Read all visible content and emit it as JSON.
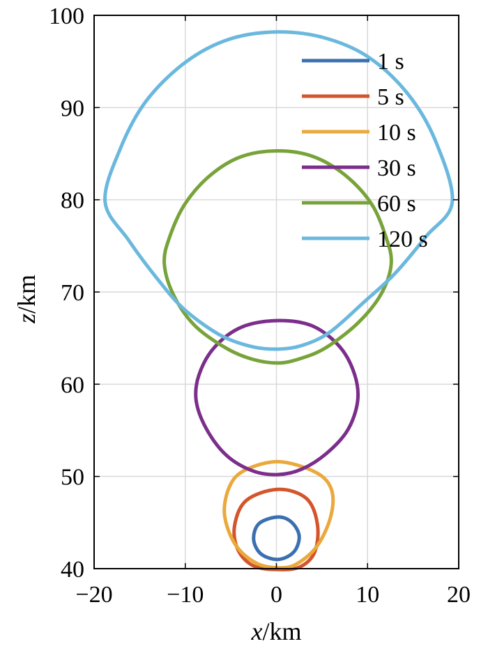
{
  "chart_data": {
    "type": "line",
    "xlabel_var": "x",
    "xlabel_unit": "/km",
    "ylabel_var": "z",
    "ylabel_unit": "/km",
    "xlim": [
      -20,
      20
    ],
    "ylim": [
      40,
      100
    ],
    "x_ticks": [
      -20,
      -10,
      0,
      10,
      20
    ],
    "y_ticks": [
      40,
      50,
      60,
      70,
      80,
      90,
      100
    ],
    "grid": true,
    "legend_position": "top-right",
    "series": [
      {
        "name": "1 s",
        "color": "#3a6fb0",
        "points": [
          [
            0.2,
            45.6
          ],
          [
            1.7,
            45.0
          ],
          [
            2.5,
            43.5
          ],
          [
            1.9,
            41.8
          ],
          [
            0.2,
            41.0
          ],
          [
            -1.7,
            41.6
          ],
          [
            -2.5,
            43.2
          ],
          [
            -1.9,
            44.9
          ]
        ]
      },
      {
        "name": "5 s",
        "color": "#d4552b",
        "points": [
          [
            0.2,
            48.6
          ],
          [
            3.3,
            47.6
          ],
          [
            4.5,
            44.8
          ],
          [
            4.2,
            41.8
          ],
          [
            2.6,
            40.2
          ],
          [
            0.2,
            39.9
          ],
          [
            -2.5,
            40.3
          ],
          [
            -4.2,
            42.0
          ],
          [
            -4.6,
            44.6
          ],
          [
            -3.3,
            47.4
          ]
        ]
      },
      {
        "name": "10 s",
        "color": "#eaa93c",
        "points": [
          [
            0.2,
            51.6
          ],
          [
            4.2,
            50.5
          ],
          [
            6.0,
            48.7
          ],
          [
            6.0,
            45.8
          ],
          [
            4.5,
            42.5
          ],
          [
            2.2,
            40.5
          ],
          [
            0.2,
            40.1
          ],
          [
            -2.2,
            40.6
          ],
          [
            -4.5,
            42.6
          ],
          [
            -5.7,
            45.9
          ],
          [
            -5.1,
            49.0
          ],
          [
            -3.4,
            50.7
          ]
        ]
      },
      {
        "name": "30 s",
        "color": "#7b2e8a",
        "points": [
          [
            0.2,
            66.9
          ],
          [
            4.0,
            66.3
          ],
          [
            7.0,
            64.0
          ],
          [
            8.6,
            61.0
          ],
          [
            8.9,
            58.1
          ],
          [
            7.8,
            55.0
          ],
          [
            5.5,
            52.5
          ],
          [
            2.8,
            50.8
          ],
          [
            0.2,
            50.2
          ],
          [
            -2.6,
            50.6
          ],
          [
            -5.5,
            52.3
          ],
          [
            -7.7,
            55.2
          ],
          [
            -8.8,
            58.2
          ],
          [
            -8.5,
            61.0
          ],
          [
            -6.8,
            64.0
          ],
          [
            -3.8,
            66.2
          ]
        ]
      },
      {
        "name": "60 s",
        "color": "#78a33a",
        "points": [
          [
            0.2,
            85.3
          ],
          [
            4.0,
            84.7
          ],
          [
            7.5,
            82.7
          ],
          [
            10.4,
            79.6
          ],
          [
            12.0,
            76.0
          ],
          [
            12.6,
            73.1
          ],
          [
            11.5,
            69.8
          ],
          [
            9.0,
            66.7
          ],
          [
            5.5,
            64.0
          ],
          [
            2.7,
            62.8
          ],
          [
            0.2,
            62.3
          ],
          [
            -2.6,
            62.7
          ],
          [
            -5.5,
            63.9
          ],
          [
            -9.0,
            66.4
          ],
          [
            -11.3,
            69.7
          ],
          [
            -12.3,
            73.1
          ],
          [
            -11.7,
            76.0
          ],
          [
            -10.0,
            79.6
          ],
          [
            -7.2,
            82.7
          ],
          [
            -3.8,
            84.7
          ]
        ]
      },
      {
        "name": "120 s",
        "color": "#6bb8de",
        "points": [
          [
            0.2,
            98.2
          ],
          [
            5.5,
            97.5
          ],
          [
            10.2,
            95.4
          ],
          [
            14.4,
            91.5
          ],
          [
            17.4,
            86.5
          ],
          [
            19.3,
            79.8
          ],
          [
            16.4,
            76.0
          ],
          [
            13.0,
            72.0
          ],
          [
            9.6,
            68.9
          ],
          [
            5.8,
            65.6
          ],
          [
            2.8,
            64.2
          ],
          [
            0.2,
            63.8
          ],
          [
            -2.8,
            64.1
          ],
          [
            -6.3,
            65.4
          ],
          [
            -10.2,
            68.2
          ],
          [
            -13.2,
            71.6
          ],
          [
            -16.2,
            75.6
          ],
          [
            -18.8,
            79.8
          ],
          [
            -17.1,
            85.6
          ],
          [
            -14.3,
            90.7
          ],
          [
            -10.0,
            94.9
          ],
          [
            -5.2,
            97.4
          ]
        ]
      }
    ]
  }
}
